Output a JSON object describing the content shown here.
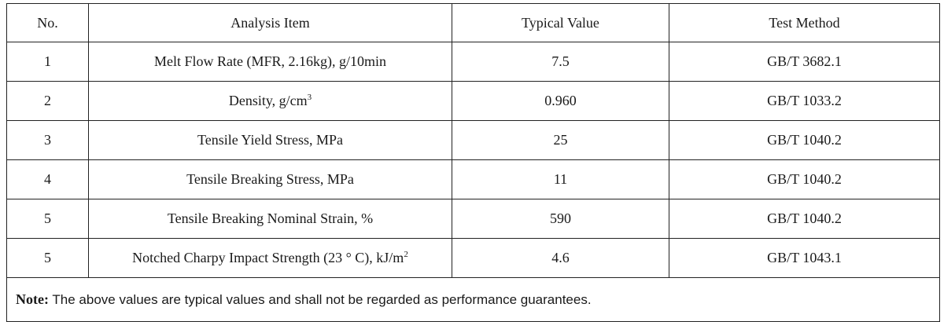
{
  "table": {
    "headers": [
      "No.",
      "Analysis Item",
      "Typical Value",
      "Test Method"
    ],
    "rows": [
      {
        "no": "1",
        "item": "Melt Flow Rate (MFR, 2.16kg), g/10min",
        "item_sup": "",
        "item_suffix": "",
        "value": "7.5",
        "method": "GB/T 3682.1"
      },
      {
        "no": "2",
        "item": "Density, g/cm",
        "item_sup": "3",
        "item_suffix": "",
        "value": "0.960",
        "method": "GB/T 1033.2"
      },
      {
        "no": "3",
        "item": "Tensile Yield Stress, MPa",
        "item_sup": "",
        "item_suffix": "",
        "value": "25",
        "method": "GB/T 1040.2"
      },
      {
        "no": "4",
        "item": "Tensile Breaking Stress, MPa",
        "item_sup": "",
        "item_suffix": "",
        "value": "11",
        "method": "GB/T 1040.2"
      },
      {
        "no": "5",
        "item": "Tensile Breaking Nominal Strain, %",
        "item_sup": "",
        "item_suffix": "",
        "value": "590",
        "method": "GB/T 1040.2"
      },
      {
        "no": "5",
        "item": "Notched Charpy Impact Strength (23 ° C), kJ/m",
        "item_sup": "2",
        "item_suffix": "",
        "value": "4.6",
        "method": "GB/T 1043.1"
      }
    ]
  },
  "note": {
    "label": "Note:",
    "text": " The above values are typical values and shall not be regarded as performance guarantees."
  }
}
